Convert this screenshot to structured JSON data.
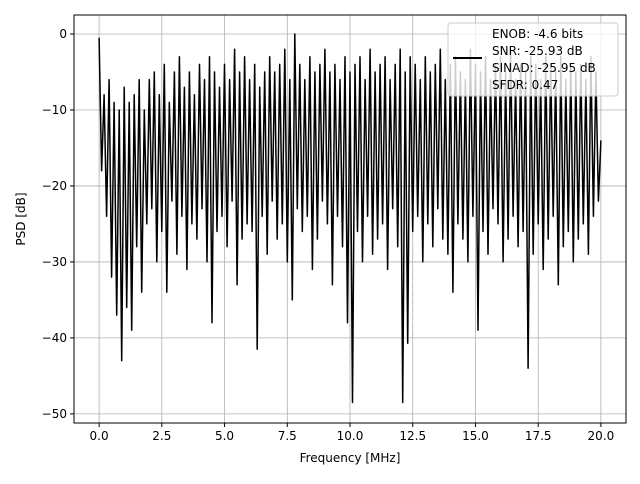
{
  "chart_data": {
    "type": "line",
    "title": "",
    "xlabel": "Frequency [MHz]",
    "ylabel": "PSD [dB]",
    "xlim": [
      -1.0,
      21.0
    ],
    "ylim": [
      -51.2,
      2.5
    ],
    "xticks": [
      0.0,
      2.5,
      5.0,
      7.5,
      10.0,
      12.5,
      15.0,
      17.5,
      20.0
    ],
    "xtick_labels": [
      "0.0",
      "2.5",
      "5.0",
      "7.5",
      "10.0",
      "12.5",
      "15.0",
      "17.5",
      "20.0"
    ],
    "yticks": [
      0,
      -10,
      -20,
      -30,
      -40,
      -50
    ],
    "ytick_labels": [
      "0",
      "−10",
      "−20",
      "−30",
      "−40",
      "−50"
    ],
    "grid": true,
    "legend_position": "top-right",
    "legend": [
      "ENOB: -4.6 bits",
      "SNR: -25.93 dB",
      "SINAD: -25.95 dB",
      "SFDR: 0.47"
    ],
    "series": [
      {
        "name": "PSD",
        "color": "#000000",
        "x_start": 0.0,
        "x_step": 0.1,
        "values": [
          -0.5,
          -18,
          -8,
          -24,
          -6,
          -32,
          -9,
          -37,
          -10,
          -43,
          -7,
          -36,
          -9,
          -39,
          -8,
          -28,
          -6,
          -34,
          -10,
          -25,
          -6,
          -23,
          -5,
          -30,
          -8,
          -26,
          -4,
          -34,
          -9,
          -22,
          -5,
          -29,
          -3,
          -24,
          -7,
          -31,
          -5,
          -25,
          -8,
          -27,
          -4,
          -23,
          -6,
          -30,
          -3,
          -38,
          -5,
          -26,
          -7,
          -24,
          -4,
          -28,
          -6,
          -22,
          -2,
          -33,
          -5,
          -27,
          -3,
          -25,
          -6,
          -26,
          -4,
          -41.5,
          -7,
          -24,
          -5,
          -29,
          -3,
          -22,
          -5,
          -27,
          -4,
          -25,
          -2,
          -30,
          -6,
          -35,
          0,
          -23,
          -4,
          -26,
          -6,
          -24,
          -3,
          -31,
          -5,
          -27,
          -4,
          -22,
          -2,
          -25,
          -5,
          -33,
          -4,
          -24,
          -6,
          -28,
          -3,
          -38,
          -5,
          -48.5,
          -4,
          -26,
          -3,
          -30,
          -6,
          -24,
          -2,
          -29,
          -5,
          -27,
          -4,
          -25,
          -3,
          -31,
          -6,
          -23,
          -4,
          -28,
          -2,
          -48.5,
          -5,
          -40.7,
          -3,
          -26,
          -4,
          -24,
          -6,
          -30,
          -3,
          -25,
          -5,
          -28,
          -4,
          -23,
          -2,
          -27,
          -6,
          -29,
          -4,
          -34,
          -3,
          -25,
          -5,
          -27,
          -6,
          -30,
          -2,
          -24,
          -4,
          -39,
          -5,
          -26,
          -3,
          -29,
          -6,
          -23,
          -4,
          -25,
          -3,
          -30,
          -5,
          -27,
          -2,
          -24,
          -6,
          -28,
          -4,
          -26,
          -5,
          -44,
          -3,
          -29,
          -4,
          -25,
          -6,
          -31,
          -3,
          -27,
          -4,
          -24,
          -5,
          -33,
          -3,
          -28,
          -6,
          -26,
          -4,
          -30,
          -5,
          -27,
          -4,
          -25,
          -6,
          -29,
          -3,
          -24,
          -5,
          -22,
          -14
        ]
      }
    ]
  }
}
